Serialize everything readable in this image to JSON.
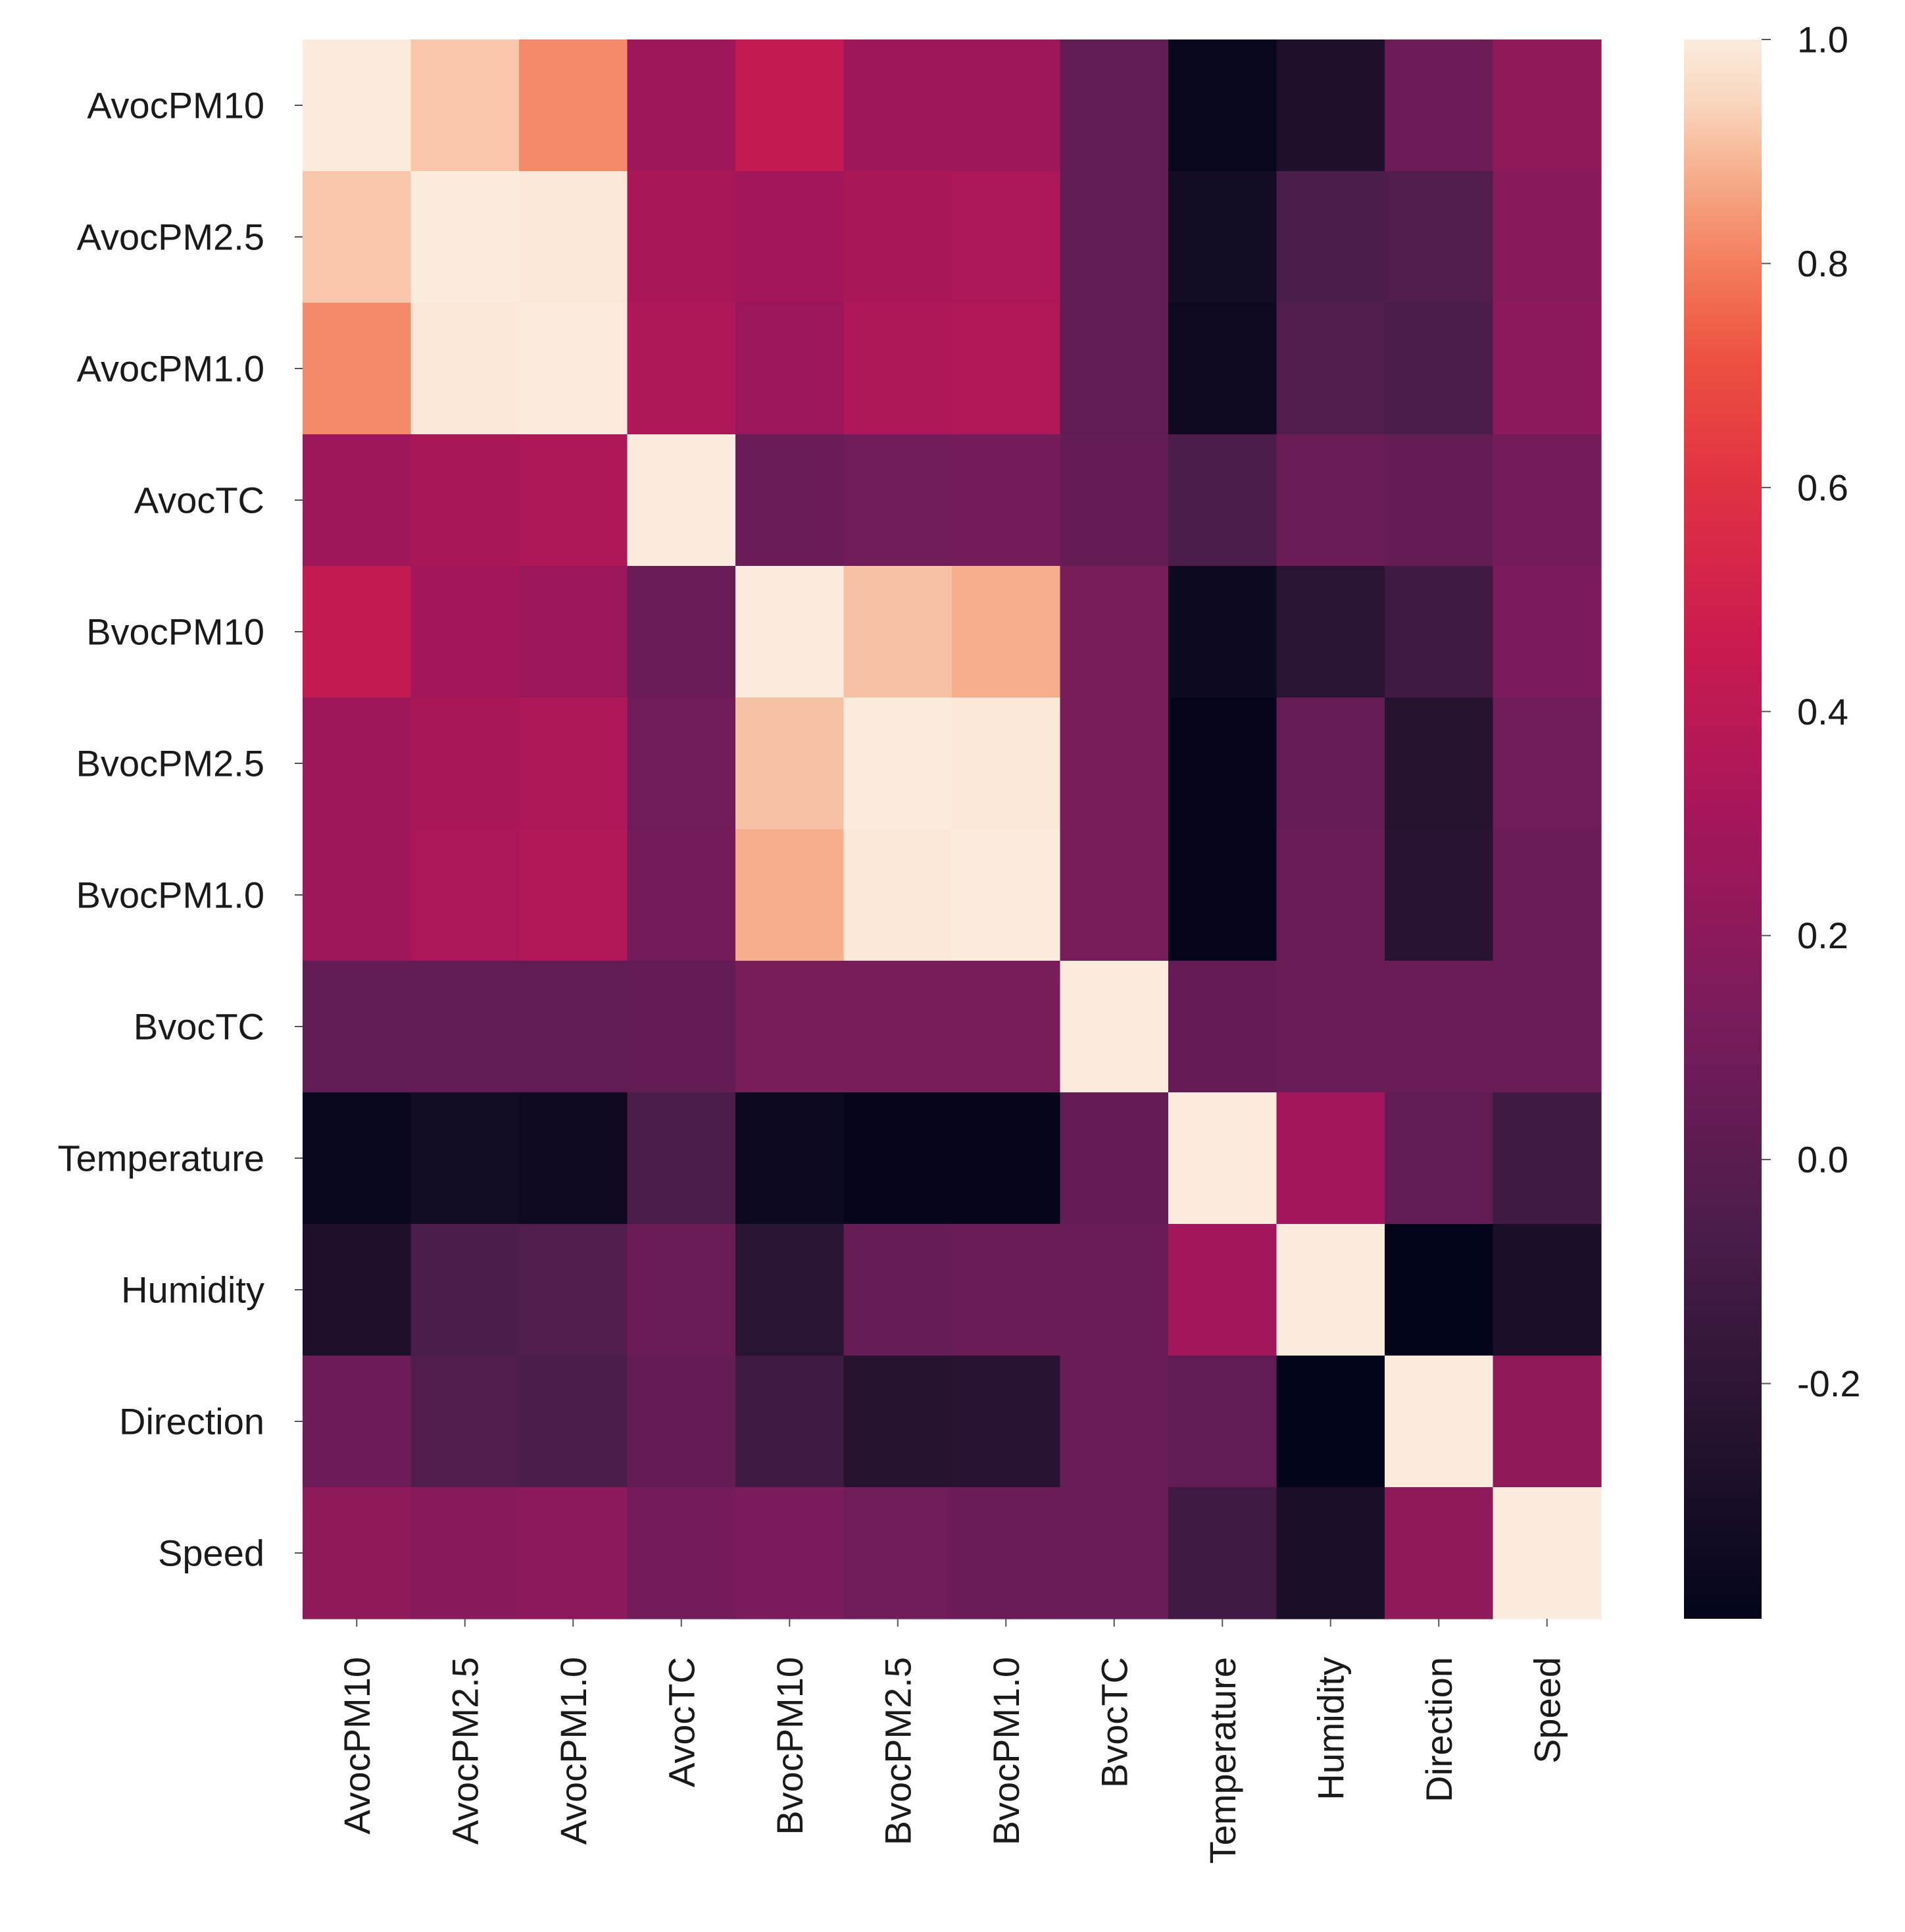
{
  "chart_data": {
    "type": "heatmap",
    "title": "",
    "colormap": "rocket",
    "row_labels": [
      "AvocPM10",
      "AvocPM2.5",
      "AvocPM1.0",
      "AvocTC",
      "BvocPM10",
      "BvocPM2.5",
      "BvocPM1.0",
      "BvocTC",
      "Temperature",
      "Humidity",
      "Direction",
      "Speed"
    ],
    "col_labels": [
      "AvocPM10",
      "AvocPM2.5",
      "AvocPM1.0",
      "AvocTC",
      "BvocPM10",
      "BvocPM2.5",
      "BvocPM1.0",
      "BvocTC",
      "Temperature",
      "Humidity",
      "Direction",
      "Speed"
    ],
    "values": [
      [
        1.0,
        0.92,
        0.82,
        0.28,
        0.43,
        0.28,
        0.28,
        0.03,
        -0.38,
        -0.28,
        0.08,
        0.21
      ],
      [
        0.92,
        1.0,
        0.99,
        0.32,
        0.3,
        0.32,
        0.33,
        0.03,
        -0.33,
        -0.06,
        -0.04,
        0.18
      ],
      [
        0.82,
        0.99,
        1.0,
        0.34,
        0.26,
        0.34,
        0.35,
        0.03,
        -0.35,
        -0.04,
        -0.06,
        0.2
      ],
      [
        0.28,
        0.32,
        0.34,
        1.0,
        0.07,
        0.09,
        0.1,
        0.04,
        -0.06,
        0.07,
        0.04,
        0.1
      ],
      [
        0.43,
        0.3,
        0.26,
        0.07,
        1.0,
        0.91,
        0.88,
        0.12,
        -0.36,
        -0.22,
        -0.12,
        0.13
      ],
      [
        0.28,
        0.32,
        0.34,
        0.09,
        0.91,
        1.0,
        0.99,
        0.12,
        -0.4,
        0.05,
        -0.24,
        0.09
      ],
      [
        0.28,
        0.33,
        0.35,
        0.1,
        0.88,
        0.99,
        1.0,
        0.12,
        -0.4,
        0.06,
        -0.23,
        0.07
      ],
      [
        0.03,
        0.03,
        0.03,
        0.04,
        0.12,
        0.12,
        0.12,
        1.0,
        0.04,
        0.06,
        0.06,
        0.06
      ],
      [
        -0.38,
        -0.33,
        -0.35,
        -0.06,
        -0.36,
        -0.4,
        -0.4,
        0.04,
        1.0,
        0.29,
        0.03,
        -0.12
      ],
      [
        -0.28,
        -0.06,
        -0.04,
        0.07,
        -0.22,
        0.05,
        0.06,
        0.06,
        0.29,
        1.0,
        -0.41,
        -0.3
      ],
      [
        0.08,
        -0.04,
        -0.06,
        0.04,
        -0.12,
        -0.24,
        -0.23,
        0.06,
        0.03,
        -0.41,
        1.0,
        0.21
      ],
      [
        0.21,
        0.18,
        0.2,
        0.1,
        0.13,
        0.09,
        0.07,
        0.06,
        -0.12,
        -0.3,
        0.21,
        1.0
      ]
    ],
    "vmin": -0.41,
    "vmax": 1.0,
    "colorbar_ticks": [
      1.0,
      0.8,
      0.6,
      0.4,
      0.2,
      0.0,
      -0.2
    ],
    "colorbar_tick_labels": [
      "1.0",
      "0.8",
      "0.6",
      "0.4",
      "0.2",
      "0.0",
      "-0.2"
    ]
  }
}
